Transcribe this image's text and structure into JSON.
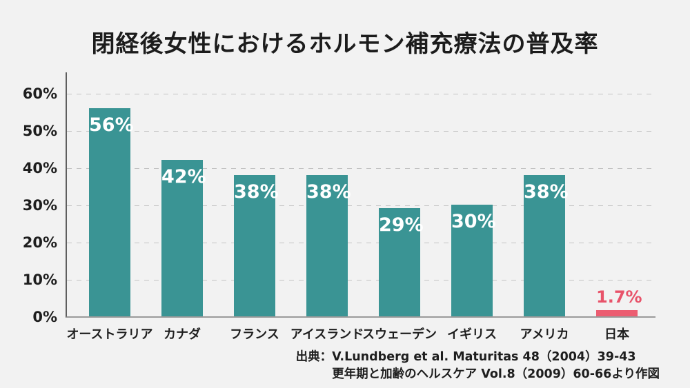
{
  "title": "閉経後女性におけるホルモン補充療法の普及率",
  "chart_data": {
    "type": "bar",
    "title": "閉経後女性におけるホルモン補充療法の普及率",
    "categories": [
      "オーストラリア",
      "カナダ",
      "フランス",
      "アイスランド",
      "スウェーデン",
      "イギリス",
      "アメリカ",
      "日本"
    ],
    "values": [
      56,
      42,
      38,
      38,
      29,
      30,
      38,
      1.7
    ],
    "value_labels": [
      "56%",
      "42%",
      "38%",
      "38%",
      "29%",
      "30%",
      "38%",
      "1.7%"
    ],
    "xlabel": "",
    "ylabel": "",
    "ylim": [
      0,
      66
    ],
    "ytick_step": 10,
    "ytick_labels": [
      "0%",
      "10%",
      "20%",
      "30%",
      "40%",
      "50%",
      "60%"
    ],
    "grid": "horizontal-dashed",
    "legend": "none",
    "bar_color": "#3a9494",
    "highlight_index": 7,
    "highlight_color": "#ec5d71",
    "value_label_color": "#ffffff",
    "highlight_label_color": "#e8536a"
  },
  "source": {
    "label": "出典：",
    "line1": "V.Lundberg et al. Maturitas 48（2004）39-43",
    "line2": "更年期と加齢のヘルスケア Vol.8（2009）60-66より作図"
  }
}
